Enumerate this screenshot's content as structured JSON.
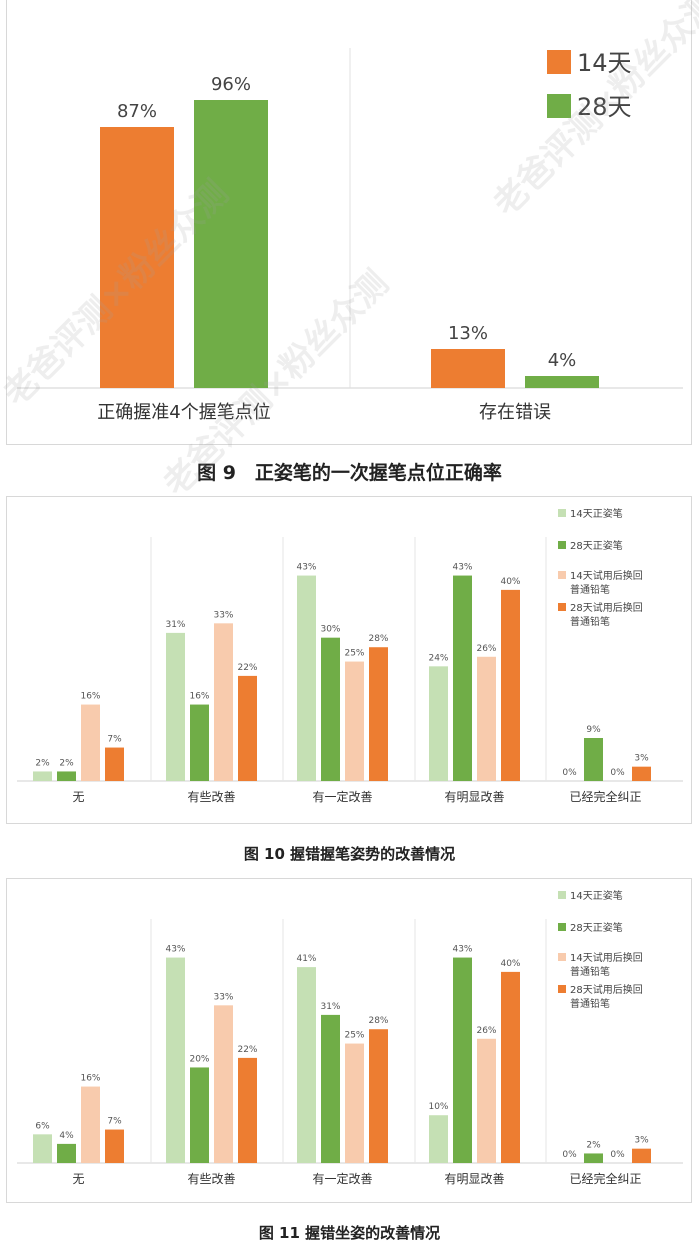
{
  "charts": [
    {
      "caption": "图 9　正姿笔的一次握笔点位正确率",
      "legend_position": "top-right",
      "colors": [
        "#ED7D31",
        "#70AD47"
      ]
    },
    {
      "caption": "图 10 握错握笔姿势的改善情况",
      "legend_position": "right",
      "colors": [
        "#C5E0B4",
        "#70AD47",
        "#F8CBAD",
        "#ED7D31"
      ]
    },
    {
      "caption": "图 11  握错坐姿的改善情况",
      "legend_position": "right",
      "colors": [
        "#C5E0B4",
        "#70AD47",
        "#F8CBAD",
        "#ED7D31"
      ]
    }
  ],
  "watermark": "老爸评测×粉丝众测",
  "chart_data": [
    {
      "type": "bar",
      "title": "",
      "categories": [
        "正确握准4个握笔点位",
        "存在错误"
      ],
      "series": [
        {
          "name": "14天",
          "values": [
            87,
            13
          ],
          "labels": [
            "87%",
            "13%"
          ]
        },
        {
          "name": "28天",
          "values": [
            96,
            4
          ],
          "labels": [
            "96%",
            "4%"
          ]
        }
      ],
      "ylim": [
        0,
        100
      ],
      "grid": false
    },
    {
      "type": "bar",
      "title": "",
      "categories": [
        "无",
        "有些改善",
        "有一定改善",
        "有明显改善",
        "已经完全纠正"
      ],
      "series": [
        {
          "name": "14天正姿笔",
          "values": [
            2,
            31,
            43,
            24,
            0
          ],
          "labels": [
            "2%",
            "31%",
            "43%",
            "24%",
            "0%"
          ]
        },
        {
          "name": "28天正姿笔",
          "values": [
            2,
            16,
            30,
            43,
            9
          ],
          "labels": [
            "2%",
            "16%",
            "30%",
            "43%",
            "9%"
          ]
        },
        {
          "name": "14天试用后换回普通铅笔",
          "values": [
            16,
            33,
            25,
            26,
            0
          ],
          "labels": [
            "16%",
            "33%",
            "25%",
            "26%",
            "0%"
          ]
        },
        {
          "name": "28天试用后换回普通铅笔",
          "values": [
            7,
            22,
            28,
            40,
            3
          ],
          "labels": [
            "7%",
            "22%",
            "28%",
            "40%",
            "3%"
          ]
        }
      ],
      "ylim": [
        0,
        45
      ],
      "grid": false
    },
    {
      "type": "bar",
      "title": "",
      "categories": [
        "无",
        "有些改善",
        "有一定改善",
        "有明显改善",
        "已经完全纠正"
      ],
      "series": [
        {
          "name": "14天正姿笔",
          "values": [
            6,
            43,
            41,
            10,
            0
          ],
          "labels": [
            "6%",
            "43%",
            "41%",
            "10%",
            "0%"
          ]
        },
        {
          "name": "28天正姿笔",
          "values": [
            4,
            20,
            31,
            43,
            2
          ],
          "labels": [
            "4%",
            "20%",
            "31%",
            "43%",
            "2%"
          ]
        },
        {
          "name": "14天试用后换回普通铅笔",
          "values": [
            16,
            33,
            25,
            26,
            0
          ],
          "labels": [
            "16%",
            "33%",
            "25%",
            "26%",
            "0%"
          ]
        },
        {
          "name": "28天试用后换回普通铅笔",
          "values": [
            7,
            22,
            28,
            40,
            3
          ],
          "labels": [
            "7%",
            "22%",
            "28%",
            "40%",
            "3%"
          ]
        }
      ],
      "ylim": [
        0,
        45
      ],
      "grid": false
    }
  ]
}
